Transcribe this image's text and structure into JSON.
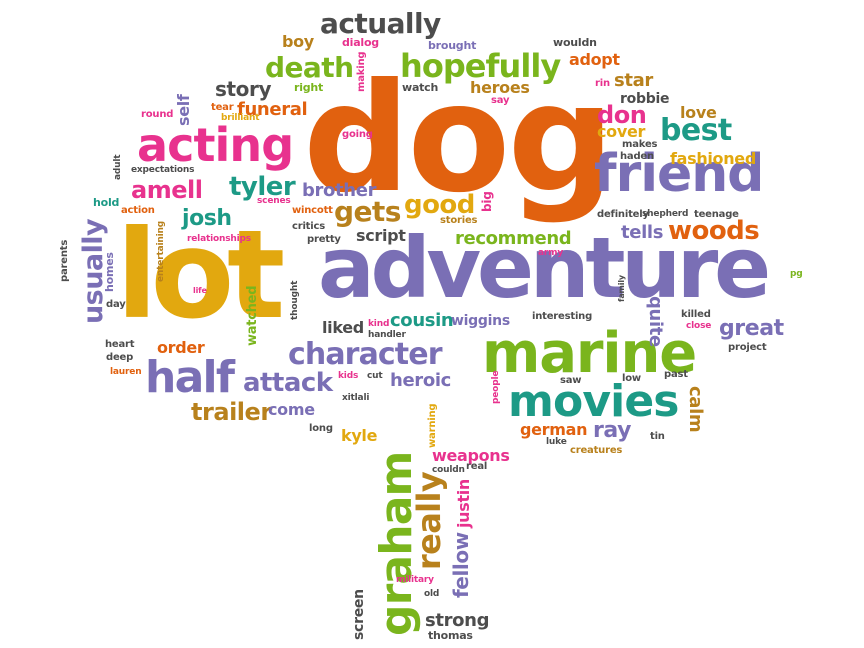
{
  "colors": {
    "orange": "#e1610f",
    "purple": "#7a6fb5",
    "green": "#7ab51d",
    "pink": "#e8328e",
    "yellow": "#e2a80f",
    "teal": "#1d9a86",
    "gray": "#4d4d4d",
    "brown": "#b8811c"
  },
  "words": {
    "dog": "dog",
    "lot": "lot",
    "adventure": "adventure",
    "marine": "marine",
    "friend": "friend",
    "acting": "acting",
    "graham": "graham",
    "movies": "movies",
    "half": "half",
    "character": "character",
    "hopefully": "hopefully",
    "death": "death",
    "actually": "actually",
    "really": "really",
    "usually": "usually",
    "amell": "amell",
    "tyler": "tyler",
    "josh": "josh",
    "gets": "gets",
    "good": "good",
    "attack": "attack",
    "woods": "woods",
    "best": "best",
    "recommend": "recommend",
    "trailer": "trailer",
    "heroic": "heroic",
    "great": "great",
    "cousin": "cousin",
    "story": "story",
    "brother": "brother",
    "fellow": "fellow",
    "justin": "justin",
    "weapons": "weapons",
    "funeral": "funeral",
    "don": "don",
    "tells": "tells",
    "heroes": "heroes",
    "cover": "cover",
    "star": "star",
    "adopt": "adopt",
    "fashioned": "fashioned",
    "love": "love",
    "liked": "liked",
    "come": "come",
    "order": "order",
    "script": "script",
    "ray": "ray",
    "german": "german",
    "calm": "calm",
    "kyle": "kyle",
    "strong": "strong",
    "boy": "boy",
    "wiggins": "wiggins",
    "quite": "quite",
    "robbie": "robbie",
    "screen": "screen",
    "self": "self",
    "watched": "watched",
    "thomas": "thomas",
    "dialog": "dialog",
    "brought": "brought",
    "wouldn": "wouldn",
    "making": "making",
    "right": "right",
    "watch": "watch",
    "rin": "rin",
    "say": "say",
    "round": "round",
    "tear": "tear",
    "brilliant": "brilliant",
    "going": "going",
    "expectations": "expectations",
    "adult": "adult",
    "makes": "makes",
    "haden": "haden",
    "hold": "hold",
    "action": "action",
    "scenes": "scenes",
    "wincott": "wincott",
    "stories": "stories",
    "big": "big",
    "definitely": "definitely",
    "shepherd": "shepherd",
    "teenage": "teenage",
    "relationships": "relationships",
    "critics": "critics",
    "pretty": "pretty",
    "army": "army",
    "parents": "parents",
    "homes": "homes",
    "entertaining": "entertaining",
    "day": "day",
    "life": "life",
    "thought": "thought",
    "pg": "pg",
    "family": "family",
    "kind": "kind",
    "handler": "handler",
    "interesting": "interesting",
    "killed": "killed",
    "close": "close",
    "project": "project",
    "heart": "heart",
    "deep": "deep",
    "lauren": "lauren",
    "kids": "kids",
    "cut": "cut",
    "xitlali": "xitlali",
    "people": "people",
    "saw": "saw",
    "low": "low",
    "past": "past",
    "warning": "warning",
    "long": "long",
    "luke": "luke",
    "creatures": "creatures",
    "tin": "tin",
    "couldn": "couldn",
    "real": "real",
    "military": "military",
    "old": "old"
  }
}
